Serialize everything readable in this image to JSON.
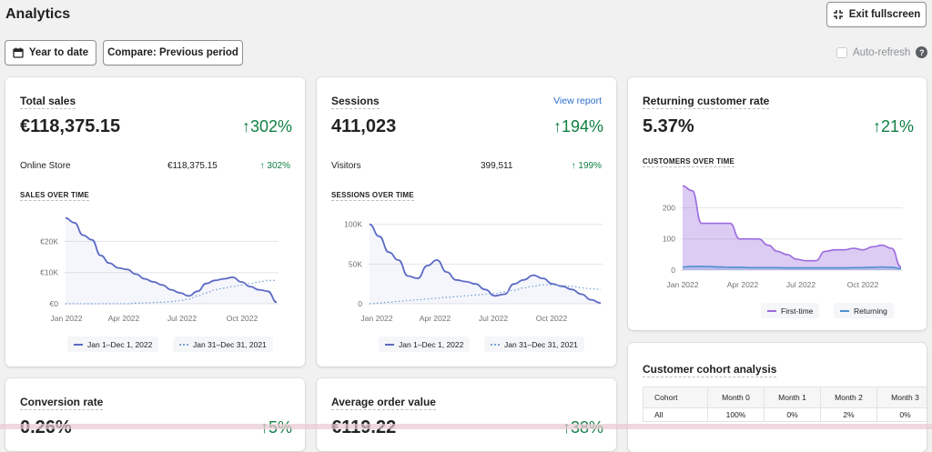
{
  "header": {
    "title": "Analytics",
    "exit_fullscreen_label": "Exit fullscreen",
    "date_range_label": "Year to date",
    "compare_label": "Compare: Previous period",
    "auto_refresh_label": "Auto-refresh",
    "help_glyph": "?"
  },
  "colors": {
    "positive": "#108043",
    "primary_line": "#5c6ac4",
    "comparison_line": "#7aa2d6",
    "first_time": "#9c6ade",
    "returning": "#4e8fd1",
    "link": "#2c6ecb"
  },
  "total_sales": {
    "title": "Total sales",
    "value": "€118,375.15",
    "change": "302%",
    "row": {
      "label": "Online Store",
      "value": "€118,375.15",
      "change": "302%"
    },
    "section": "SALES OVER TIME",
    "legend": [
      "Jan 1–Dec 1, 2022",
      "Jan 31–Dec 31, 2021"
    ]
  },
  "sessions": {
    "title": "Sessions",
    "link": "View report",
    "value": "411,023",
    "change": "194%",
    "row": {
      "label": "Visitors",
      "value": "399,511",
      "change": "199%"
    },
    "section": "SESSIONS OVER TIME",
    "legend": [
      "Jan 1–Dec 1, 2022",
      "Jan 31–Dec 31, 2021"
    ]
  },
  "returning": {
    "title": "Returning customer rate",
    "value": "5.37%",
    "change": "21%",
    "section": "CUSTOMERS OVER TIME",
    "legend": [
      "First-time",
      "Returning"
    ]
  },
  "conversion": {
    "title": "Conversion rate",
    "value": "0.26%",
    "change": "5%"
  },
  "aov": {
    "title": "Average order value",
    "value": "€119.22",
    "change": "38%"
  },
  "cohort": {
    "title": "Customer cohort analysis",
    "headers": [
      "Cohort",
      "Month 0",
      "Month 1",
      "Month 2",
      "Month 3"
    ],
    "rows": [
      [
        "All",
        "100%",
        "0%",
        "2%",
        "0%"
      ]
    ]
  },
  "chart_data": [
    {
      "type": "line",
      "name": "sales-over-time",
      "x_ticks": [
        "Jan 2022",
        "Apr 2022",
        "Jul 2022",
        "Oct 2022"
      ],
      "y_ticks": [
        "€0",
        "€10K",
        "€20K"
      ],
      "ylim": [
        0,
        28000
      ],
      "series": [
        {
          "name": "Jan 1–Dec 1, 2022",
          "style": "solid",
          "values": [
            27500,
            26000,
            22000,
            20500,
            15500,
            13000,
            11500,
            11000,
            9500,
            8000,
            7000,
            6000,
            4500,
            3500,
            2500,
            4000,
            6500,
            7500,
            8000,
            8500,
            7000,
            5500,
            4500,
            4000,
            500
          ]
        },
        {
          "name": "Jan 31–Dec 31, 2021",
          "style": "dotted",
          "values": [
            0,
            0,
            0,
            0,
            0,
            0,
            0,
            0,
            200,
            300,
            400,
            500,
            700,
            1000,
            1500,
            2500,
            3500,
            4500,
            5000,
            5500,
            6000,
            6500,
            7000,
            7500,
            7500
          ]
        }
      ]
    },
    {
      "type": "line",
      "name": "sessions-over-time",
      "x_ticks": [
        "Jan 2022",
        "Apr 2022",
        "Jul 2022",
        "Oct 2022"
      ],
      "y_ticks": [
        "0",
        "50K",
        "100K"
      ],
      "ylim": [
        0,
        110000
      ],
      "series": [
        {
          "name": "Jan 1–Dec 1, 2022",
          "style": "solid",
          "values": [
            100000,
            85000,
            65000,
            55000,
            35000,
            32000,
            48000,
            55000,
            40000,
            30000,
            28000,
            25000,
            18000,
            10000,
            12000,
            25000,
            30000,
            36000,
            32000,
            25000,
            22000,
            18000,
            12000,
            5000,
            1000
          ]
        },
        {
          "name": "Jan 31–Dec 31, 2021",
          "style": "dotted",
          "values": [
            0,
            1000,
            2000,
            3000,
            4000,
            5000,
            6000,
            7000,
            8000,
            9000,
            10000,
            11000,
            12000,
            13000,
            15000,
            17000,
            20000,
            22000,
            24000,
            24000,
            23000,
            22000,
            20000,
            19000,
            18000
          ]
        }
      ]
    },
    {
      "type": "area",
      "name": "customers-over-time",
      "x_ticks": [
        "Jan 2022",
        "Apr 2022",
        "Jul 2022",
        "Oct 2022"
      ],
      "y_ticks": [
        "0",
        "100",
        "200"
      ],
      "ylim": [
        0,
        280
      ],
      "series": [
        {
          "name": "First-time",
          "values": [
            270,
            255,
            150,
            150,
            150,
            150,
            100,
            100,
            100,
            80,
            60,
            50,
            35,
            30,
            30,
            60,
            65,
            65,
            70,
            65,
            75,
            80,
            70,
            10
          ]
        },
        {
          "name": "Returning",
          "values": [
            10,
            12,
            12,
            11,
            10,
            9,
            9,
            8,
            8,
            8,
            8,
            7,
            7,
            7,
            7,
            7,
            7,
            7,
            8,
            8,
            9,
            10,
            9,
            5
          ]
        }
      ]
    }
  ]
}
